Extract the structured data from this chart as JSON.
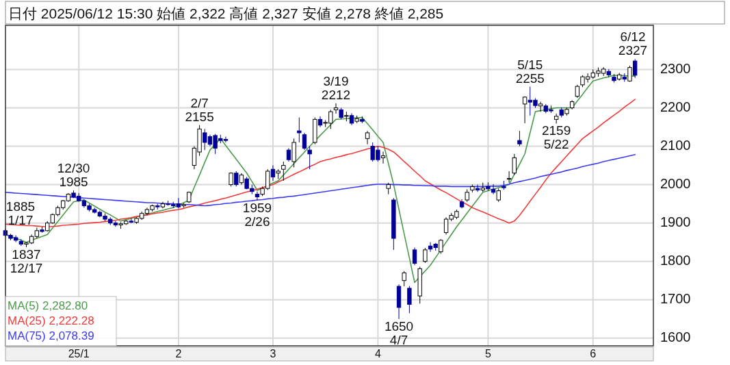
{
  "chart_data": {
    "type": "candlestick",
    "title": "日付 2025/06/12 15:30 始値 2,322 高値 2,327 安値 2,278 終値 2,285",
    "categories": [
      null,
      null,
      null,
      null,
      null,
      null,
      null,
      null,
      null,
      null,
      null,
      null,
      null,
      null,
      "25/1",
      null,
      null,
      null,
      null,
      null,
      null,
      null,
      null,
      null,
      null,
      null,
      null,
      null,
      null,
      null,
      null,
      null,
      null,
      "2",
      null,
      null,
      null,
      null,
      null,
      null,
      null,
      null,
      null,
      null,
      null,
      null,
      null,
      null,
      null,
      null,
      null,
      "3",
      null,
      null,
      null,
      null,
      null,
      null,
      null,
      null,
      null,
      null,
      null,
      null,
      null,
      null,
      null,
      null,
      null,
      null,
      null,
      "4",
      null,
      null,
      null,
      null,
      null,
      null,
      null,
      null,
      null,
      null,
      null,
      null,
      null,
      null,
      null,
      null,
      null,
      null,
      null,
      null,
      "5",
      null,
      null,
      null,
      null,
      null,
      null,
      null,
      null,
      null,
      null,
      null,
      null,
      null,
      null,
      null,
      null,
      null,
      null,
      null,
      "6",
      null,
      null,
      null,
      null,
      null,
      null,
      null,
      null
    ],
    "ylim": [
      1580,
      2415
    ],
    "yticks": [
      1600,
      1700,
      1800,
      1900,
      2000,
      2100,
      2200,
      2300
    ],
    "grid": true,
    "legend": "bottom left",
    "series": [
      {
        "type": "line",
        "name": "MA(5) 2,282.80",
        "color": "#4a9a4a",
        "values": [
          1870,
          1865,
          1860,
          1855,
          1850,
          1855,
          1860,
          1865,
          1870,
          1887,
          1904,
          1921,
          1938,
          1955,
          1958,
          1960,
          1952,
          1944,
          1936,
          1928,
          1921,
          1913,
          1905,
          1909,
          1912,
          1916,
          1919,
          1923,
          1926,
          1930,
          1933,
          1937,
          1940,
          1947,
          1953,
          1960,
          1993,
          2025,
          2058,
          2090,
          2105,
          2120,
          2102,
          2084,
          2066,
          2048,
          2030,
          2008,
          1985,
          1991,
          1998,
          2004,
          2010,
          2025,
          2040,
          2055,
          2070,
          2085,
          2100,
          2114,
          2128,
          2142,
          2156,
          2170,
          2171,
          2172,
          2173,
          2174,
          2175,
          2159,
          2143,
          2126,
          2110,
          2055,
          2000,
          1936,
          1872,
          1809,
          1745,
          1760,
          1775,
          1790,
          1810,
          1830,
          1850,
          1870,
          1890,
          1908,
          1926,
          1944,
          1962,
          1980,
          1984,
          1988,
          1992,
          1996,
          2000,
          2027,
          2053,
          2080,
          2135,
          2190,
          2193,
          2195,
          2198,
          2200,
          2200,
          2200,
          2200,
          2218,
          2235,
          2253,
          2270,
          2274,
          2278,
          2281,
          2285,
          2284,
          2284,
          2283,
          2282.8
        ]
      },
      {
        "type": "line",
        "name": "MA(25) 2,222.28",
        "color": "#f03a3a",
        "values": [
          1897,
          1896,
          1895,
          1894,
          1893,
          1893,
          1892,
          1891,
          1890,
          1891,
          1892,
          1894,
          1895,
          1896,
          1897,
          1899,
          1900,
          1901,
          1902,
          1904,
          1905,
          1907,
          1910,
          1912,
          1914,
          1917,
          1919,
          1921,
          1924,
          1926,
          1928,
          1931,
          1933,
          1935,
          1938,
          1942,
          1945,
          1948,
          1952,
          1955,
          1958,
          1962,
          1965,
          1969,
          1973,
          1977,
          1981,
          1984,
          1988,
          1992,
          1996,
          2000,
          2007,
          2013,
          2020,
          2027,
          2033,
          2040,
          2047,
          2053,
          2060,
          2064,
          2067,
          2071,
          2074,
          2078,
          2081,
          2085,
          2089,
          2093,
          2096,
          2100,
          2097,
          2092,
          2085,
          2073,
          2060,
          2048,
          2035,
          2023,
          2010,
          2002,
          1994,
          1986,
          1979,
          1971,
          1963,
          1955,
          1948,
          1940,
          1934,
          1929,
          1923,
          1917,
          1911,
          1906,
          1900,
          1905,
          1920,
          1938,
          1957,
          1975,
          1993,
          2012,
          2030,
          2045,
          2060,
          2075,
          2090,
          2105,
          2120,
          2130,
          2140,
          2150,
          2161,
          2171,
          2181,
          2191,
          2202,
          2212,
          2222.28
        ]
      },
      {
        "type": "line",
        "name": "MA(75) 2,078.39",
        "color": "#3a3af0",
        "values": [
          1980,
          1979,
          1978,
          1977,
          1976,
          1975,
          1974,
          1973,
          1972,
          1971,
          1970,
          1969,
          1968,
          1967,
          1966,
          1965,
          1964,
          1963,
          1962,
          1961,
          1960,
          1959,
          1958,
          1957,
          1956,
          1955,
          1954,
          1953,
          1953,
          1952,
          1951,
          1950,
          1950,
          1949,
          1948,
          1948,
          1947,
          1946,
          1945,
          1946,
          1948,
          1949,
          1951,
          1952,
          1954,
          1955,
          1957,
          1958,
          1960,
          1961,
          1963,
          1964,
          1966,
          1967,
          1969,
          1970,
          1972,
          1974,
          1976,
          1978,
          1980,
          1982,
          1984,
          1986,
          1988,
          1990,
          1992,
          1994,
          1996,
          1998,
          2000,
          2001,
          2001,
          2001,
          2000,
          2000,
          1999,
          1999,
          1998,
          1998,
          1997,
          1997,
          1996,
          1996,
          1996,
          1995,
          1995,
          1995,
          1995,
          1995,
          1995,
          1995,
          1996,
          1996,
          1996,
          1998,
          2001,
          2005,
          2008,
          2011,
          2014,
          2017,
          2021,
          2024,
          2027,
          2030,
          2033,
          2037,
          2040,
          2043,
          2047,
          2050,
          2053,
          2056,
          2060,
          2063,
          2066,
          2069,
          2072,
          2075,
          2078.39
        ]
      },
      {
        "colors": [
          "#000099",
          "#000099",
          "#000099",
          "#000099",
          "#ffffff",
          "#ffffff",
          "#ffffff",
          "#000099",
          "#ffffff",
          "#ffffff",
          "#ffffff",
          "#ffffff",
          "#ffffff",
          "#000099",
          "#000099",
          "#000099",
          "#000099",
          "#000099",
          "#000099",
          "#000099",
          "#000099",
          "#000099",
          "#ffffff",
          "#ffffff",
          "#000099",
          "#ffffff",
          "#ffffff",
          "#ffffff",
          "#ffffff",
          "#000099",
          "#ffffff",
          "#000099",
          "#000099",
          "#000099",
          "#ffffff",
          "#ffffff",
          "#ffffff",
          "#ffffff",
          "#000099",
          "#000099",
          "#000099",
          "#000099",
          "#000099",
          "#ffffff",
          "#000099",
          "#ffffff",
          "#000099",
          "#000099",
          "#000099",
          "#ffffff",
          "#ffffff",
          "#000099",
          "#ffffff",
          "#ffffff",
          "#000099",
          "#ffffff",
          "#000099",
          "#000099",
          "#000099",
          "#ffffff",
          "#000099",
          "#ffffff",
          "#ffffff",
          "#ffffff",
          "#000099",
          "#ffffff",
          "#000099",
          "#ffffff",
          "#000099",
          "#ffffff",
          "#000099",
          "#000099",
          "#ffffff",
          "#ffffff",
          "#000099",
          "#000099",
          "#ffffff",
          "#000099",
          "#000099",
          "#ffffff",
          "#ffffff",
          "#000099",
          "#000099",
          "#ffffff",
          "#ffffff",
          "#ffffff",
          "#ffffff",
          "#000099",
          "#ffffff",
          "#ffffff",
          "#000099",
          "#ffffff",
          "#000099",
          "#000099",
          "#ffffff",
          "#000099",
          "#ffffff",
          "#ffffff",
          "#000099",
          "#ffffff",
          "#000099",
          "#000099",
          "#ffffff",
          "#000099",
          "#000099",
          "#ffffff",
          "#000099",
          "#ffffff",
          "#ffffff",
          "#ffffff",
          "#ffffff",
          "#ffffff",
          "#ffffff",
          "#ffffff",
          "#ffffff",
          "#000099",
          "#000099",
          "#ffffff",
          "#000099",
          "#ffffff",
          "#000099"
        ],
        "ohlc": [
          [
            1880,
            1885,
            1865,
            1868
          ],
          [
            1868,
            1872,
            1855,
            1860
          ],
          [
            1862,
            1868,
            1850,
            1855
          ],
          [
            1852,
            1858,
            1840,
            1845
          ],
          [
            1845,
            1850,
            1837,
            1848
          ],
          [
            1848,
            1870,
            1845,
            1865
          ],
          [
            1865,
            1888,
            1860,
            1880
          ],
          [
            1882,
            1890,
            1875,
            1878
          ],
          [
            1880,
            1905,
            1878,
            1900
          ],
          [
            1900,
            1925,
            1898,
            1922
          ],
          [
            1922,
            1945,
            1918,
            1940
          ],
          [
            1940,
            1960,
            1935,
            1958
          ],
          [
            1958,
            1978,
            1955,
            1975
          ],
          [
            1978,
            1985,
            1965,
            1968
          ],
          [
            1970,
            1978,
            1955,
            1958
          ],
          [
            1958,
            1962,
            1940,
            1945
          ],
          [
            1945,
            1950,
            1930,
            1935
          ],
          [
            1935,
            1940,
            1925,
            1928
          ],
          [
            1928,
            1932,
            1915,
            1918
          ],
          [
            1918,
            1925,
            1905,
            1910
          ],
          [
            1910,
            1915,
            1895,
            1900
          ],
          [
            1900,
            1905,
            1890,
            1895
          ],
          [
            1895,
            1902,
            1885,
            1898
          ],
          [
            1898,
            1908,
            1895,
            1905
          ],
          [
            1905,
            1912,
            1900,
            1902
          ],
          [
            1902,
            1915,
            1898,
            1912
          ],
          [
            1912,
            1930,
            1908,
            1925
          ],
          [
            1925,
            1940,
            1920,
            1935
          ],
          [
            1935,
            1948,
            1930,
            1945
          ],
          [
            1945,
            1950,
            1935,
            1942
          ],
          [
            1942,
            1955,
            1938,
            1950
          ],
          [
            1950,
            1958,
            1945,
            1948
          ],
          [
            1948,
            1955,
            1940,
            1945
          ],
          [
            1950,
            1965,
            1938,
            1942
          ],
          [
            1945,
            1952,
            1940,
            1948
          ],
          [
            1955,
            1982,
            1952,
            1980
          ],
          [
            2050,
            2100,
            2040,
            2095
          ],
          [
            2085,
            2155,
            2075,
            2145
          ],
          [
            2135,
            2145,
            2090,
            2110
          ],
          [
            2125,
            2130,
            2100,
            2105
          ],
          [
            2128,
            2132,
            2080,
            2095
          ],
          [
            2120,
            2130,
            2108,
            2115
          ],
          [
            2118,
            2125,
            2110,
            2115
          ],
          [
            2000,
            2032,
            1995,
            2030
          ],
          [
            2030,
            2035,
            1995,
            2000
          ],
          [
            2005,
            2030,
            2000,
            2025
          ],
          [
            2015,
            2020,
            1988,
            1990
          ],
          [
            1990,
            2000,
            1975,
            1982
          ],
          [
            1975,
            1982,
            1959,
            1968
          ],
          [
            1975,
            1995,
            1970,
            1990
          ],
          [
            1990,
            2040,
            1986,
            2035
          ],
          [
            2040,
            2050,
            2010,
            2020
          ],
          [
            2030,
            2040,
            2015,
            2035
          ],
          [
            2040,
            2060,
            2010,
            2050
          ],
          [
            2090,
            2095,
            2060,
            2065
          ],
          [
            2060,
            2120,
            2045,
            2110
          ],
          [
            2140,
            2175,
            2110,
            2135
          ],
          [
            2130,
            2135,
            2090,
            2095
          ],
          [
            2090,
            2100,
            2040,
            2080
          ],
          [
            2110,
            2175,
            2105,
            2170
          ],
          [
            2170,
            2178,
            2150,
            2155
          ],
          [
            2160,
            2168,
            2150,
            2162
          ],
          [
            2160,
            2195,
            2145,
            2190
          ],
          [
            2195,
            2212,
            2185,
            2200
          ],
          [
            2195,
            2200,
            2170,
            2175
          ],
          [
            2178,
            2190,
            2165,
            2180
          ],
          [
            2180,
            2186,
            2155,
            2160
          ],
          [
            2165,
            2180,
            2160,
            2172
          ],
          [
            2170,
            2178,
            2160,
            2165
          ],
          [
            2120,
            2140,
            2105,
            2135
          ],
          [
            2100,
            2110,
            2060,
            2065
          ],
          [
            2090,
            2100,
            2060,
            2065
          ],
          [
            2070,
            2086,
            2055,
            2075
          ],
          [
            1990,
            2005,
            1975,
            2000
          ],
          [
            1960,
            1965,
            1830,
            1860
          ],
          [
            1735,
            1740,
            1650,
            1680
          ],
          [
            1750,
            1775,
            1735,
            1770
          ],
          [
            1730,
            1736,
            1665,
            1688
          ],
          [
            1830,
            1836,
            1790,
            1795
          ],
          [
            1710,
            1786,
            1690,
            1781
          ],
          [
            1800,
            1835,
            1796,
            1830
          ],
          [
            1840,
            1850,
            1825,
            1832
          ],
          [
            1845,
            1848,
            1828,
            1836
          ],
          [
            1825,
            1858,
            1820,
            1855
          ],
          [
            1875,
            1915,
            1870,
            1910
          ],
          [
            1910,
            1926,
            1905,
            1920
          ],
          [
            1915,
            1935,
            1910,
            1930
          ],
          [
            1955,
            1962,
            1938,
            1942
          ],
          [
            1960,
            1988,
            1955,
            1980
          ],
          [
            1986,
            2000,
            1980,
            1995
          ],
          [
            1990,
            2000,
            1981,
            1986
          ],
          [
            1986,
            2005,
            1981,
            1991
          ],
          [
            1995,
            2006,
            1984,
            1989
          ],
          [
            1988,
            2001,
            1975,
            1980
          ],
          [
            1960,
            1990,
            1955,
            1984
          ],
          [
            1995,
            2010,
            1987,
            1992
          ],
          [
            2015,
            2035,
            2005,
            2016
          ],
          [
            2030,
            2080,
            2025,
            2070
          ],
          [
            2115,
            2140,
            2100,
            2106
          ],
          [
            2210,
            2230,
            2160,
            2228
          ],
          [
            2220,
            2255,
            2180,
            2215
          ],
          [
            2220,
            2225,
            2200,
            2206
          ],
          [
            2205,
            2216,
            2190,
            2210
          ],
          [
            2205,
            2210,
            2186,
            2191
          ],
          [
            2195,
            2206,
            2187,
            2192
          ],
          [
            2170,
            2185,
            2159,
            2178
          ],
          [
            2195,
            2201,
            2175,
            2181
          ],
          [
            2185,
            2201,
            2180,
            2196
          ],
          [
            2200,
            2220,
            2196,
            2216
          ],
          [
            2230,
            2260,
            2226,
            2256
          ],
          [
            2260,
            2285,
            2254,
            2281
          ],
          [
            2275,
            2290,
            2266,
            2281
          ],
          [
            2280,
            2300,
            2276,
            2291
          ],
          [
            2290,
            2305,
            2281,
            2296
          ],
          [
            2290,
            2306,
            2283,
            2301
          ],
          [
            2295,
            2301,
            2280,
            2286
          ],
          [
            2280,
            2288,
            2266,
            2271
          ],
          [
            2275,
            2291,
            2271,
            2286
          ],
          [
            2280,
            2290,
            2268,
            2275
          ],
          [
            2270,
            2310,
            2268,
            2305
          ],
          [
            2322,
            2327,
            2278,
            2285
          ]
        ]
      }
    ],
    "annotations": [
      {
        "text": "1837\n12/17",
        "y": 1837
      },
      {
        "text": "12/30\n1985",
        "y": 1985
      },
      {
        "text": "1885\n1/17",
        "y": 1885
      },
      {
        "text": "2/7\n2155",
        "y": 2155
      },
      {
        "text": "1959\n2/26",
        "y": 1959
      },
      {
        "text": "3/19\n2212",
        "y": 2212
      },
      {
        "text": "1650\n4/7",
        "y": 1650
      },
      {
        "text": "5/15\n2255",
        "y": 2255
      },
      {
        "text": "2159\n5/22",
        "y": 2159
      },
      {
        "text": "6/12\n2327",
        "y": 2327
      }
    ]
  }
}
